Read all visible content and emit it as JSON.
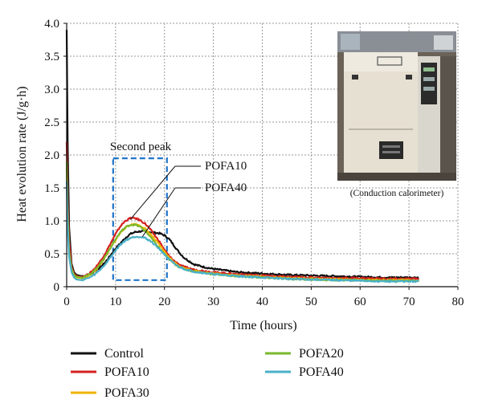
{
  "chart_data": {
    "type": "line",
    "title": "",
    "xlabel": "Time (hours)",
    "ylabel": "Heat evolution rate (J/g·h)",
    "xlim": [
      0,
      80
    ],
    "ylim": [
      0,
      4.0
    ],
    "xticks": [
      "0",
      "10",
      "20",
      "30",
      "40",
      "50",
      "60",
      "70",
      "80"
    ],
    "yticks": [
      "0",
      "0.5",
      "1.0",
      "1.5",
      "2.0",
      "2.5",
      "3.0",
      "3.5",
      "4.0"
    ],
    "grid": true,
    "legend_position": "bottom",
    "series": [
      {
        "name": "Control",
        "color": "#111111",
        "x": [
          0,
          0.2,
          0.5,
          1,
          1.5,
          2,
          3,
          4,
          5,
          6,
          7,
          8,
          9,
          10,
          11,
          12,
          13,
          14,
          15,
          16,
          17,
          18,
          19,
          20,
          21,
          22,
          23,
          24,
          26,
          28,
          30,
          35,
          40,
          45,
          50,
          55,
          60,
          65,
          70,
          72
        ],
        "y": [
          3.9,
          2.2,
          0.9,
          0.35,
          0.22,
          0.18,
          0.16,
          0.17,
          0.2,
          0.25,
          0.3,
          0.38,
          0.48,
          0.58,
          0.66,
          0.74,
          0.8,
          0.83,
          0.84,
          0.84,
          0.83,
          0.82,
          0.81,
          0.78,
          0.72,
          0.62,
          0.52,
          0.44,
          0.34,
          0.3,
          0.27,
          0.22,
          0.2,
          0.18,
          0.17,
          0.16,
          0.15,
          0.14,
          0.14,
          0.14
        ]
      },
      {
        "name": "POFA10",
        "color": "#d42020",
        "x": [
          0,
          0.2,
          0.5,
          1,
          1.5,
          2,
          3,
          4,
          5,
          6,
          7,
          8,
          9,
          10,
          11,
          12,
          13,
          14,
          15,
          16,
          17,
          18,
          19,
          20,
          21,
          22,
          23,
          24,
          26,
          28,
          30,
          35,
          40,
          45,
          50,
          55,
          60,
          65,
          70,
          72
        ],
        "y": [
          2.2,
          1.3,
          0.7,
          0.3,
          0.2,
          0.16,
          0.15,
          0.17,
          0.22,
          0.3,
          0.4,
          0.52,
          0.66,
          0.8,
          0.92,
          1.0,
          1.04,
          1.04,
          1.01,
          0.96,
          0.88,
          0.78,
          0.68,
          0.56,
          0.46,
          0.39,
          0.34,
          0.3,
          0.26,
          0.24,
          0.22,
          0.19,
          0.17,
          0.15,
          0.14,
          0.13,
          0.13,
          0.12,
          0.12,
          0.12
        ]
      },
      {
        "name": "POFA30",
        "color": "#f0b400",
        "x": [
          0,
          0.2,
          0.5,
          1,
          1.5,
          2,
          3,
          4,
          5,
          6,
          7,
          8,
          9,
          10,
          11,
          12,
          13,
          14,
          15,
          16,
          17,
          18,
          19,
          20,
          21,
          22,
          23,
          24,
          26,
          28,
          30,
          35,
          40,
          45,
          50,
          55,
          60,
          65,
          70,
          72
        ],
        "y": [
          1.8,
          1.0,
          0.5,
          0.25,
          0.17,
          0.14,
          0.13,
          0.15,
          0.19,
          0.26,
          0.35,
          0.46,
          0.59,
          0.71,
          0.82,
          0.9,
          0.94,
          0.95,
          0.93,
          0.88,
          0.81,
          0.72,
          0.63,
          0.53,
          0.44,
          0.37,
          0.32,
          0.28,
          0.24,
          0.22,
          0.2,
          0.17,
          0.15,
          0.13,
          0.12,
          0.11,
          0.1,
          0.1,
          0.1,
          0.09
        ]
      },
      {
        "name": "POFA20",
        "color": "#7ab82d",
        "x": [
          0,
          0.2,
          0.5,
          1,
          1.5,
          2,
          3,
          4,
          5,
          6,
          7,
          8,
          9,
          10,
          11,
          12,
          13,
          14,
          15,
          16,
          17,
          18,
          19,
          20,
          21,
          22,
          23,
          24,
          26,
          28,
          30,
          35,
          40,
          45,
          50,
          55,
          60,
          65,
          70,
          72
        ],
        "y": [
          1.9,
          1.1,
          0.55,
          0.27,
          0.18,
          0.15,
          0.14,
          0.16,
          0.2,
          0.27,
          0.36,
          0.47,
          0.6,
          0.72,
          0.83,
          0.9,
          0.94,
          0.94,
          0.91,
          0.85,
          0.77,
          0.67,
          0.58,
          0.49,
          0.41,
          0.35,
          0.3,
          0.27,
          0.23,
          0.21,
          0.19,
          0.16,
          0.14,
          0.12,
          0.11,
          0.1,
          0.1,
          0.09,
          0.09,
          0.09
        ]
      },
      {
        "name": "POFA40",
        "color": "#4ab0c8",
        "x": [
          0,
          0.2,
          0.5,
          1,
          1.5,
          2,
          3,
          4,
          5,
          6,
          7,
          8,
          9,
          10,
          11,
          12,
          13,
          14,
          15,
          16,
          17,
          18,
          19,
          20,
          21,
          22,
          23,
          24,
          26,
          28,
          30,
          35,
          40,
          45,
          50,
          55,
          60,
          65,
          70,
          72
        ],
        "y": [
          1.6,
          0.9,
          0.45,
          0.22,
          0.14,
          0.11,
          0.1,
          0.12,
          0.15,
          0.2,
          0.27,
          0.35,
          0.45,
          0.55,
          0.64,
          0.7,
          0.74,
          0.76,
          0.76,
          0.74,
          0.7,
          0.64,
          0.57,
          0.49,
          0.41,
          0.35,
          0.3,
          0.27,
          0.23,
          0.21,
          0.19,
          0.16,
          0.14,
          0.12,
          0.11,
          0.1,
          0.09,
          0.08,
          0.08,
          0.08
        ]
      }
    ],
    "annotations": {
      "second_peak_label": "Second peak",
      "second_peak_box": {
        "x": [
          9.5,
          20.5
        ],
        "y": [
          0.1,
          1.95
        ]
      },
      "pofa10_label": "POFA10",
      "pofa10_target": [
        13,
        1.02
      ],
      "pofa40_label": "POFA40",
      "pofa40_target": [
        15.5,
        0.76
      ],
      "inset_caption": "(Conduction calorimeter)"
    }
  }
}
